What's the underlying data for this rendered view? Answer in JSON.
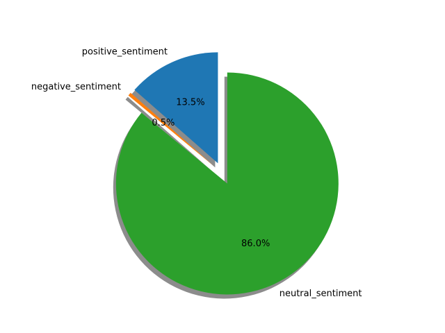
{
  "chart_data": {
    "type": "pie",
    "title": "",
    "start_angle_deg": 90,
    "direction": "counterclockwise",
    "shadow": true,
    "slices": [
      {
        "label": "positive_sentiment",
        "value": 13.5,
        "pct_label": "13.5%",
        "color": "#1f77b4",
        "exploded": true
      },
      {
        "label": "negative_sentiment",
        "value": 0.5,
        "pct_label": "0.5%",
        "color": "#ff7f0e",
        "exploded": true
      },
      {
        "label": "neutral_sentiment",
        "value": 86.0,
        "pct_label": "86.0%",
        "color": "#2ca02c",
        "exploded": true
      }
    ]
  }
}
